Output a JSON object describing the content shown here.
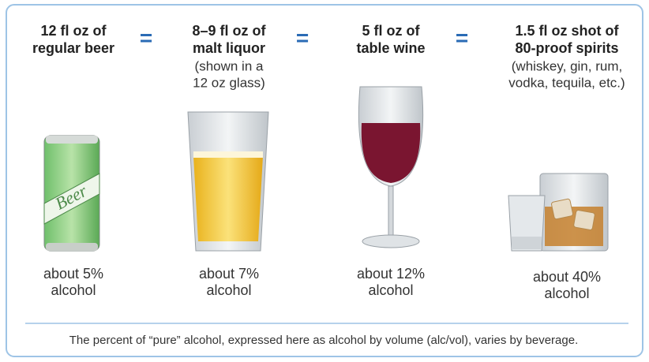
{
  "columns": [
    {
      "title": [
        "12 fl oz of",
        "regular beer"
      ],
      "subtitle": [],
      "label": [
        "about 5%",
        "alcohol"
      ]
    },
    {
      "title": [
        "8–9 fl oz of",
        "malt liquor"
      ],
      "subtitle": [
        "(shown in a",
        "12 oz glass)"
      ],
      "label": [
        "about 7%",
        "alcohol"
      ]
    },
    {
      "title": [
        "5 fl oz of",
        "table wine"
      ],
      "subtitle": [],
      "label": [
        "about 12%",
        "alcohol"
      ]
    },
    {
      "title": [
        "1.5 fl oz shot of",
        "80-proof spirits"
      ],
      "subtitle": [
        "(whiskey, gin, rum,",
        "vodka, tequila, etc.)"
      ],
      "label": [
        "about 40%",
        "alcohol"
      ]
    }
  ],
  "separators": [
    "=",
    "=",
    "="
  ],
  "can_text": "Beer",
  "footer": "The percent of “pure” alcohol, expressed here as alcohol by volume (alc/vol), varies by beverage."
}
